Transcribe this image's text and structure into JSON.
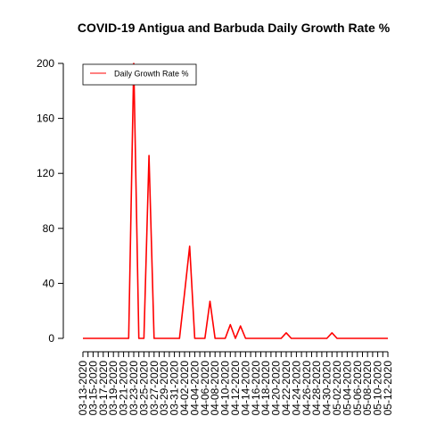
{
  "chart_data": {
    "type": "line",
    "title": "COVID-19 Antigua and Barbuda Daily Growth Rate %",
    "xlabel": "",
    "ylabel": "",
    "ylim": [
      0,
      200
    ],
    "yticks": [
      0,
      40,
      80,
      120,
      160,
      200
    ],
    "grid": false,
    "legend_position": "top-left",
    "line_color": "#ff0000",
    "x": [
      "03-13-2020",
      "03-14-2020",
      "03-15-2020",
      "03-16-2020",
      "03-17-2020",
      "03-18-2020",
      "03-19-2020",
      "03-20-2020",
      "03-21-2020",
      "03-22-2020",
      "03-23-2020",
      "03-24-2020",
      "03-25-2020",
      "03-26-2020",
      "03-27-2020",
      "03-28-2020",
      "03-29-2020",
      "03-30-2020",
      "03-31-2020",
      "04-01-2020",
      "04-02-2020",
      "04-03-2020",
      "04-04-2020",
      "04-05-2020",
      "04-06-2020",
      "04-07-2020",
      "04-08-2020",
      "04-09-2020",
      "04-10-2020",
      "04-11-2020",
      "04-12-2020",
      "04-13-2020",
      "04-14-2020",
      "04-15-2020",
      "04-16-2020",
      "04-17-2020",
      "04-18-2020",
      "04-19-2020",
      "04-20-2020",
      "04-21-2020",
      "04-22-2020",
      "04-23-2020",
      "04-24-2020",
      "04-25-2020",
      "04-26-2020",
      "04-27-2020",
      "04-28-2020",
      "04-29-2020",
      "04-30-2020",
      "05-01-2020",
      "05-02-2020",
      "05-03-2020",
      "05-04-2020",
      "05-05-2020",
      "05-06-2020",
      "05-07-2020",
      "05-08-2020",
      "05-09-2020",
      "05-10-2020",
      "05-11-2020",
      "05-12-2020"
    ],
    "x_tick_labels": [
      "03-13-2020",
      "03-15-2020",
      "03-17-2020",
      "03-19-2020",
      "03-21-2020",
      "03-23-2020",
      "03-25-2020",
      "03-27-2020",
      "03-29-2020",
      "03-31-2020",
      "04-02-2020",
      "04-04-2020",
      "04-06-2020",
      "04-08-2020",
      "04-10-2020",
      "04-12-2020",
      "04-14-2020",
      "04-16-2020",
      "04-18-2020",
      "04-20-2020",
      "04-22-2020",
      "04-24-2020",
      "04-26-2020",
      "04-28-2020",
      "04-30-2020",
      "05-02-2020",
      "05-04-2020",
      "05-06-2020",
      "05-08-2020",
      "05-10-2020",
      "05-12-2020"
    ],
    "series": [
      {
        "name": "Daily Growth Rate %",
        "values": [
          0,
          0,
          0,
          0,
          0,
          0,
          0,
          0,
          0,
          0,
          200,
          0,
          0,
          133,
          0,
          0,
          0,
          0,
          0,
          0,
          33,
          67,
          0,
          0,
          0,
          27,
          0,
          0,
          0,
          10,
          0,
          9,
          0,
          0,
          0,
          0,
          0,
          0,
          0,
          0,
          4,
          0,
          0,
          0,
          0,
          0,
          0,
          0,
          0,
          4,
          0,
          0,
          0,
          0,
          0,
          0,
          0,
          0,
          0,
          0,
          0
        ]
      }
    ]
  }
}
